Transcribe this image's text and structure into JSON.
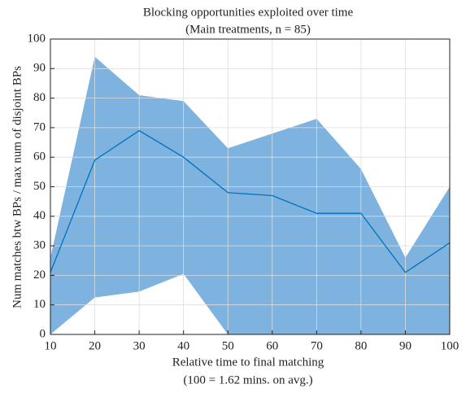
{
  "chart_data": {
    "type": "line",
    "title": [
      "Blocking opportunities exploited over time",
      "(Main treatments, n = 85)"
    ],
    "xlabel": [
      "Relative time to final matching",
      "(100 = 1.62 mins. on avg.)"
    ],
    "ylabel": "Num matches btw BPs / max num of disjoint BPs",
    "x": [
      10,
      20,
      30,
      40,
      50,
      60,
      70,
      80,
      90,
      100
    ],
    "series": [
      {
        "color": "#0072bd",
        "values": [
          21,
          59,
          69,
          60,
          48,
          47,
          41,
          41,
          21,
          31
        ]
      }
    ],
    "band": {
      "color": "#7db3de",
      "upper": [
        26,
        94,
        81,
        79,
        63,
        68,
        73,
        56,
        26,
        50
      ],
      "lower": [
        0,
        12.5,
        14.5,
        20.5,
        0,
        0,
        0,
        0,
        0,
        0
      ]
    },
    "xlim": [
      10,
      100
    ],
    "xticks": [
      10,
      20,
      30,
      40,
      50,
      60,
      70,
      80,
      90,
      100
    ],
    "ylim": [
      0,
      100
    ],
    "yticks": [
      0,
      10,
      20,
      30,
      40,
      50,
      60,
      70,
      80,
      90,
      100
    ],
    "grid": true
  }
}
